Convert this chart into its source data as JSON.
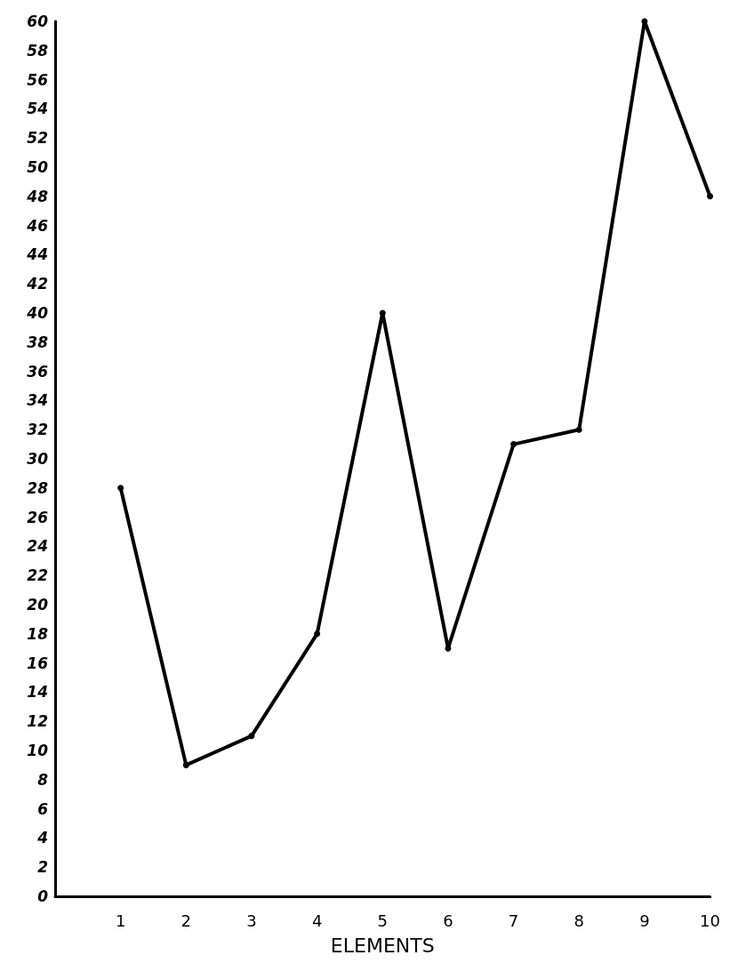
{
  "chart_data": {
    "type": "line",
    "xlabel": "ELEMENTS",
    "x": [
      1,
      2,
      3,
      4,
      5,
      6,
      7,
      8,
      9,
      10
    ],
    "series": [
      {
        "color": "#000000",
        "values": [
          28,
          9,
          11,
          18,
          40,
          17,
          31,
          32,
          60,
          48
        ]
      }
    ],
    "xlim": [
      0,
      10
    ],
    "xticks": [
      1,
      2,
      3,
      4,
      5,
      6,
      7,
      8,
      9,
      10
    ],
    "ylim": [
      0,
      60
    ],
    "yticks": [
      0,
      2,
      4,
      6,
      8,
      10,
      12,
      14,
      16,
      18,
      20,
      22,
      24,
      26,
      28,
      30,
      32,
      34,
      36,
      38,
      40,
      42,
      44,
      46,
      48,
      50,
      52,
      54,
      56,
      58,
      60
    ],
    "grid": false,
    "marker": "circle",
    "line_style": "solid"
  }
}
